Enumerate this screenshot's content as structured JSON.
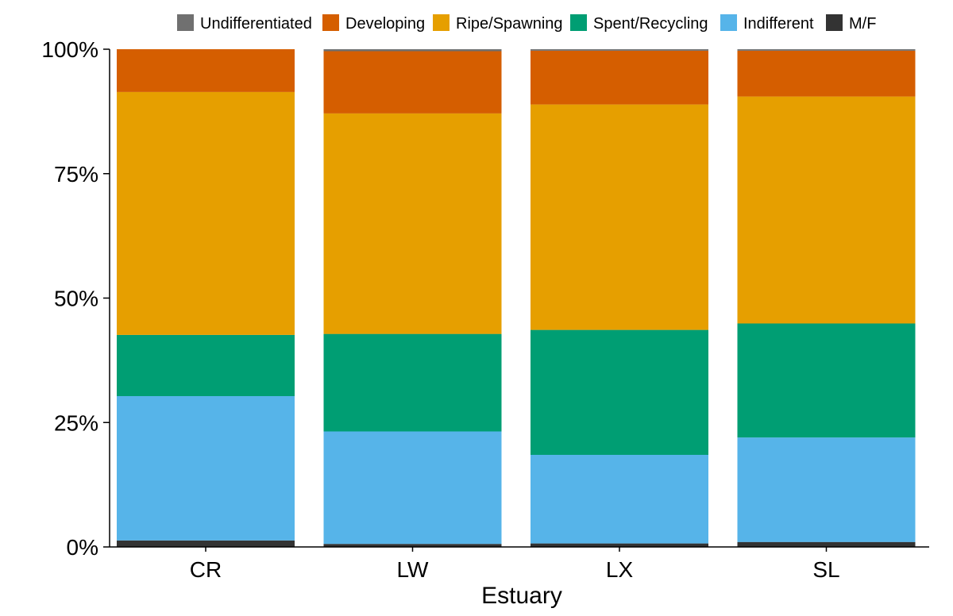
{
  "chart_data": {
    "type": "bar",
    "stacked": true,
    "normalized": true,
    "categories": [
      "CR",
      "LW",
      "LX",
      "SL"
    ],
    "xlabel": "Estuary",
    "ylabel": "",
    "ylim": [
      0,
      1
    ],
    "yticks": [
      0,
      0.25,
      0.5,
      0.75,
      1.0
    ],
    "ytick_labels": [
      "0%",
      "25%",
      "50%",
      "75%",
      "100%"
    ],
    "grid": false,
    "legend_position": "top",
    "series": [
      {
        "name": "M/F",
        "color": "#333333",
        "values": [
          0.013,
          0.006,
          0.007,
          0.01
        ]
      },
      {
        "name": "Indifferent",
        "color": "#56B4E9",
        "values": [
          0.29,
          0.226,
          0.178,
          0.21
        ]
      },
      {
        "name": "Spent/Recycling",
        "color": "#009E73",
        "values": [
          0.123,
          0.196,
          0.251,
          0.229
        ]
      },
      {
        "name": "Ripe/Spawning",
        "color": "#E69F00",
        "values": [
          0.488,
          0.443,
          0.453,
          0.456
        ]
      },
      {
        "name": "Developing",
        "color": "#D55E00",
        "values": [
          0.086,
          0.125,
          0.108,
          0.092
        ]
      },
      {
        "name": "Undifferentiated",
        "color": "#707070",
        "values": [
          0.0,
          0.004,
          0.003,
          0.003
        ]
      }
    ],
    "legend_order": [
      "Undifferentiated",
      "Developing",
      "Ripe/Spawning",
      "Spent/Recycling",
      "Indifferent",
      "M/F"
    ]
  }
}
